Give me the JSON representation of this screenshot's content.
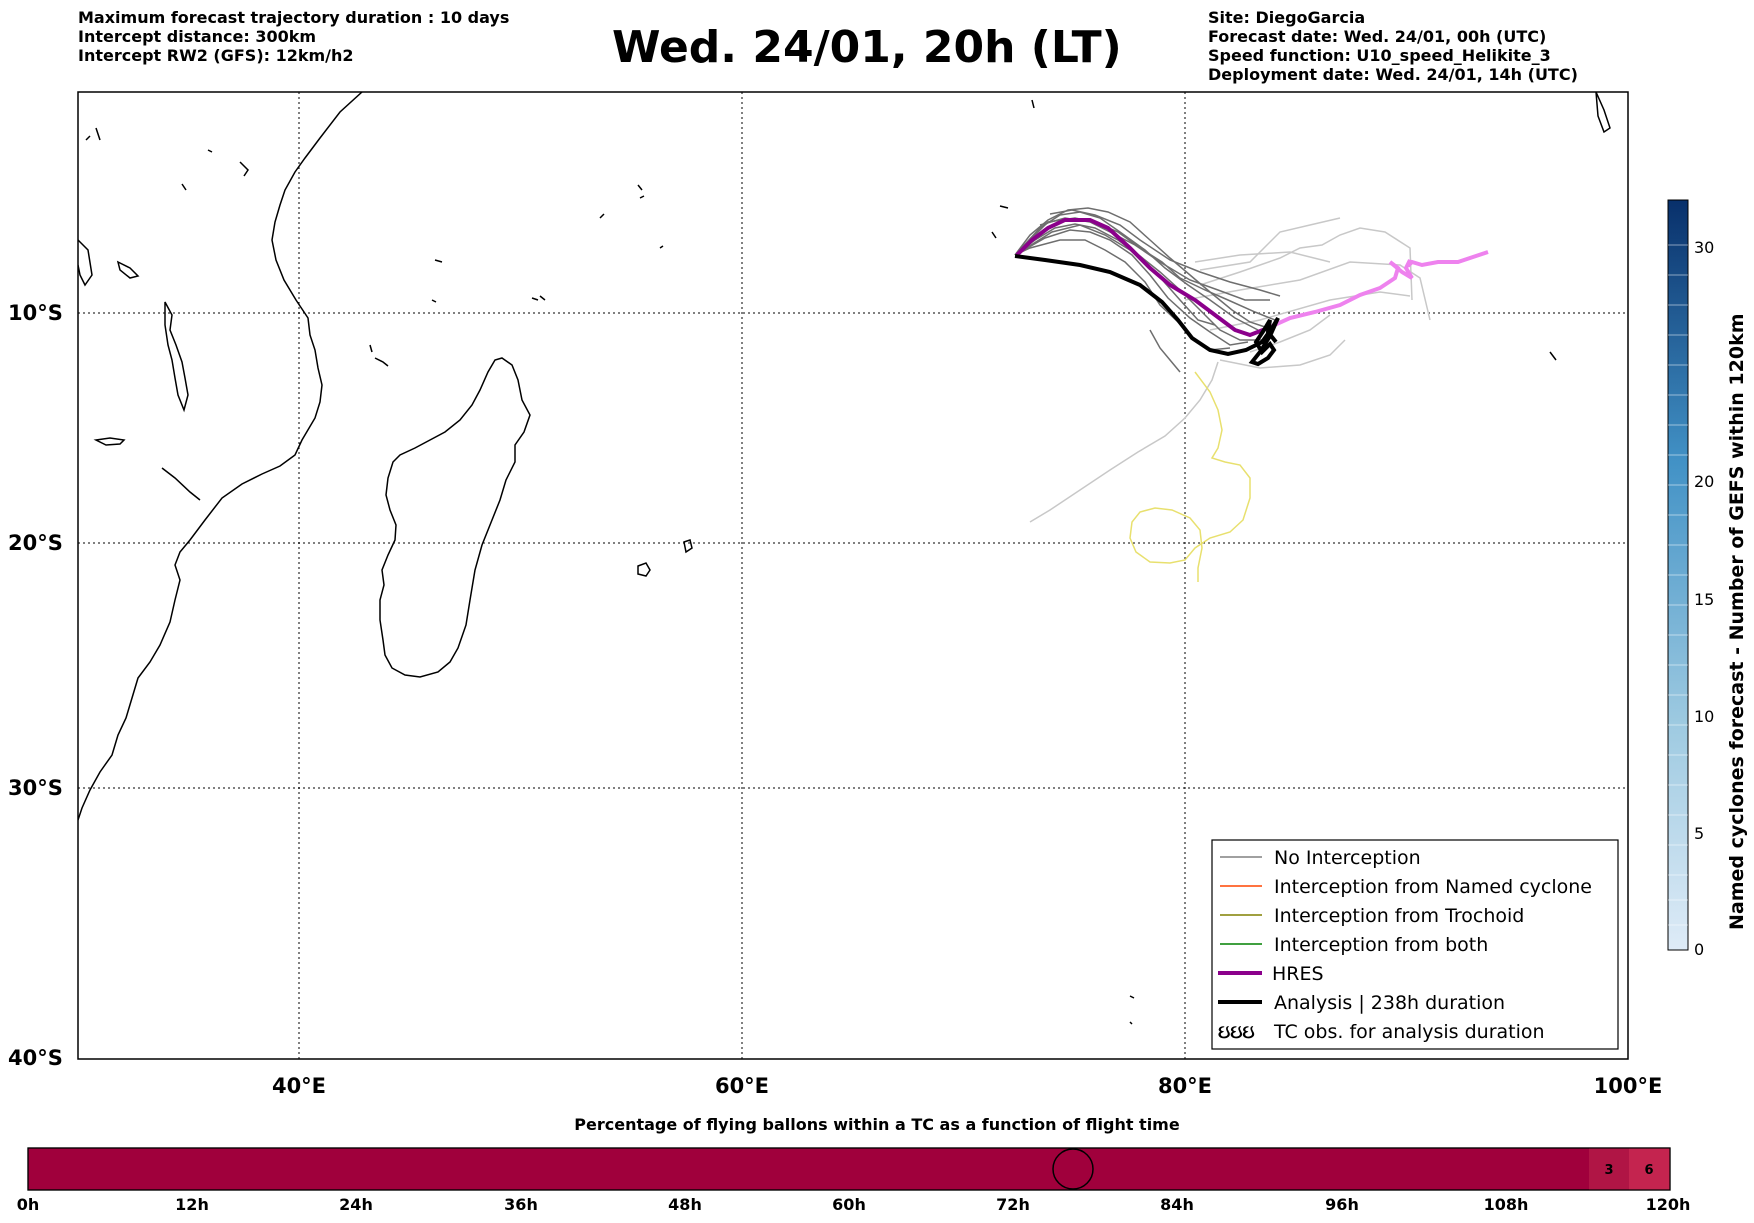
{
  "header_left": [
    "Maximum forecast trajectory duration : 10 days",
    "Intercept distance: 300km",
    "Intercept RW2 (GFS):  12km/h2"
  ],
  "header_right": [
    "Site: DiegoGarcia",
    "Forecast date: Wed. 24/01, 00h (UTC)",
    "Speed function: U10_speed_Helikite_3",
    "Deployment date: Wed. 24/01, 14h (UTC)"
  ],
  "title": "Wed. 24/01, 20h (LT)",
  "map": {
    "lon_range": [
      30,
      100
    ],
    "lat_range": [
      -40,
      0
    ],
    "lat_labels": [
      "10°S",
      "20°S",
      "30°S",
      "40°S"
    ],
    "lon_labels": [
      "40°E",
      "60°E",
      "80°E",
      "100°E"
    ],
    "gridlines": true
  },
  "legend": {
    "position": "bottom-right",
    "items": [
      {
        "label": "No Interception",
        "color": "#808080",
        "style": "thin"
      },
      {
        "label": "Interception from Named cyclone",
        "color": "#ff4500",
        "style": "thin"
      },
      {
        "label": "Interception from Trochoid",
        "color": "#808000",
        "style": "thin"
      },
      {
        "label": "Interception from both",
        "color": "#008000",
        "style": "thin"
      },
      {
        "label": "HRES",
        "color": "#8b008b",
        "style": "thick"
      },
      {
        "label": "Analysis | 238h duration",
        "color": "#000000",
        "style": "thick"
      },
      {
        "label": "TC obs. for analysis duration",
        "color": "#000000",
        "style": "symbol",
        "symbol": "ઇઇઇ"
      }
    ]
  },
  "colorbar": {
    "label": "Named cyclones forecast - Number of GEFS within 120km",
    "ticks": [
      "0",
      "5",
      "10",
      "15",
      "20",
      "30"
    ],
    "color_low": "#deebf7",
    "color_high": "#08306b"
  },
  "timeline": {
    "title": "Percentage of flying ballons within a TC as a function of flight time",
    "ticks": [
      "0h",
      "12h",
      "24h",
      "36h",
      "48h",
      "60h",
      "72h",
      "84h",
      "96h",
      "108h",
      "120h"
    ],
    "bar_color": "#a0003c",
    "segments": [
      {
        "label": "3",
        "color": "#b01545"
      },
      {
        "label": "6",
        "color": "#c4244f"
      }
    ],
    "current_marker_hours": 76
  }
}
